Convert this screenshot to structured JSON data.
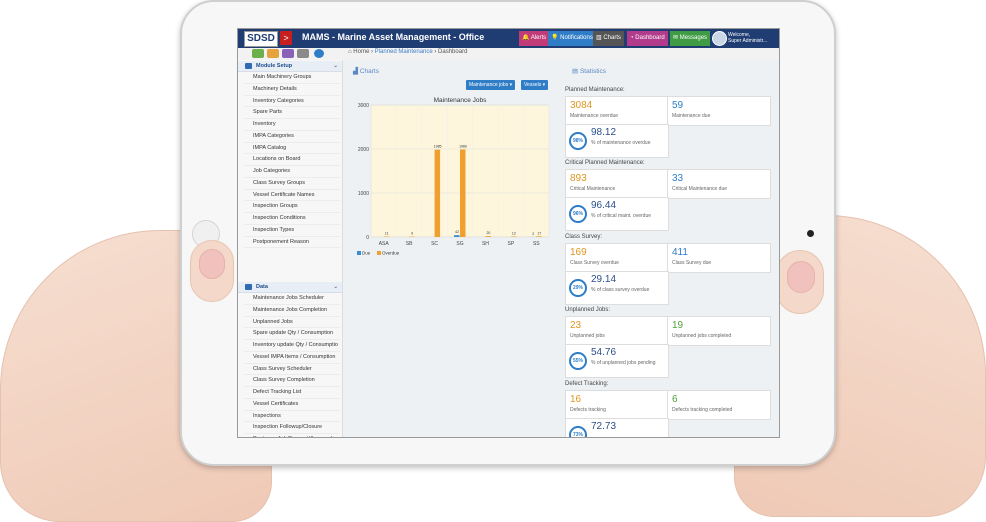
{
  "app": {
    "logo": "SDSD",
    "logo_arrow": ">",
    "title": "MAMS - Marine Asset Management - Office",
    "welcome_line1": "Welcome,",
    "welcome_line2": "Super Administr..."
  },
  "nav": [
    {
      "label": "Alerts",
      "icon": "bell-icon",
      "color": "#c13b78"
    },
    {
      "label": "Notifications",
      "icon": "lightbulb-icon",
      "color": "#2f7dc7"
    },
    {
      "label": "Charts",
      "icon": "chart-icon",
      "color": "#555555"
    },
    {
      "label": "Dashboard",
      "icon": "dashboard-icon",
      "color": "#b23b8c"
    },
    {
      "label": "Messages",
      "icon": "message-icon",
      "color": "#3f9c45"
    }
  ],
  "breadcrumb": {
    "home": "Home",
    "sep1": "›",
    "level1": "Planned Maintenance",
    "sep2": "›",
    "level2": "Dashboard"
  },
  "sidebar": {
    "module_setup": {
      "label": "Module Setup",
      "items": [
        "Main Machinery Groups",
        "Machinery Details",
        "Inventory Categories",
        "Spare Parts",
        "Inventory",
        "IMPA Categories",
        "IMPA Catalog",
        "Locations on Board",
        "Job Categories",
        "Class Survey Groups",
        "Vessel Certificate Names",
        "Inspection Groups",
        "Inspection Conditions",
        "Inspection Types",
        "Postponement Reason"
      ]
    },
    "data": {
      "label": "Data",
      "items": [
        "Maintenance Jobs Scheduler",
        "Maintenance Jobs Completion",
        "Unplanned Jobs",
        "Spare update Qty / Consumption",
        "Inventory update Qty / Consumptio",
        "Vessel IMPA Items / Consumption",
        "Class Survey Scheduler",
        "Class Survey Completion",
        "Defect Tracking List",
        "Vessel Certificates",
        "Inspections",
        "Inspection Followup/Closure",
        "Postpone Job Request/Approval"
      ]
    },
    "collapse_icon": "«"
  },
  "charts": {
    "panel_title": "Charts",
    "dropdown_jobs": "Maintenance jobs ▾",
    "dropdown_vessels": "Vessels ▾"
  },
  "chart_data": {
    "type": "bar",
    "title": "Maintenance Jobs",
    "categories": [
      "ASA",
      "SB",
      "SC",
      "SG",
      "SH",
      "SP",
      "SS"
    ],
    "series": [
      {
        "name": "Due",
        "color": "#3a8fd1",
        "values": [
          0,
          0,
          0,
          42,
          0,
          0,
          2
        ]
      },
      {
        "name": "Overdue",
        "color": "#f0a030",
        "values": [
          11,
          9,
          1985,
          1989,
          20,
          12,
          17
        ]
      }
    ],
    "data_labels": [
      [
        "",
        "",
        "",
        "42",
        "",
        "",
        "2"
      ],
      [
        "11",
        "9",
        "1985",
        "1989",
        "20",
        "12",
        "17"
      ]
    ],
    "yticks": [
      "0",
      "1000",
      "2000",
      "3000"
    ],
    "ylim": [
      0,
      3000
    ],
    "legend_position": "bottom-left",
    "grid": true
  },
  "statistics": {
    "panel_title": "Statistics",
    "sections": [
      {
        "label": "Planned Maintenance:",
        "left_num": "3084",
        "left_sub": "Maintenance overdue",
        "right_num": "59",
        "right_sub": "Maintenance due",
        "pct_ring": "98%",
        "pct": "98.12",
        "pct_sub": "% of maintenance overdue"
      },
      {
        "label": "Critical Planned Maintenance:",
        "left_num": "893",
        "left_sub": "Critical Maintenance",
        "right_num": "33",
        "right_sub": "Critical Maintenance due",
        "pct_ring": "96%",
        "pct": "96.44",
        "pct_sub": "% of critical maint. overdue"
      },
      {
        "label": "Class Survey:",
        "left_num": "169",
        "left_sub": "Class Survey overdue",
        "right_num": "411",
        "right_sub": "Class Survey due",
        "pct_ring": "29%",
        "pct": "29.14",
        "pct_sub": "% of class survey overdue"
      },
      {
        "label": "Unplanned Jobs:",
        "left_num": "23",
        "left_sub": "Unplanned jobs",
        "right_num": "19",
        "right_sub": "Unplanned jobs completed",
        "pct_ring": "55%",
        "pct": "54.76",
        "pct_sub": "% of unplanned jobs pending"
      },
      {
        "label": "Defect Tracking:",
        "left_num": "16",
        "left_sub": "Defects tracking",
        "right_num": "6",
        "right_sub": "Defects tracking completed",
        "pct_ring": "73%",
        "pct": "72.73",
        "pct_sub": ""
      }
    ],
    "left_color": "#e0951f",
    "right_colors": [
      "#2f7dc7",
      "#2f7dc7",
      "#2f7dc7",
      "#4fa23d",
      "#4fa23d"
    ]
  }
}
